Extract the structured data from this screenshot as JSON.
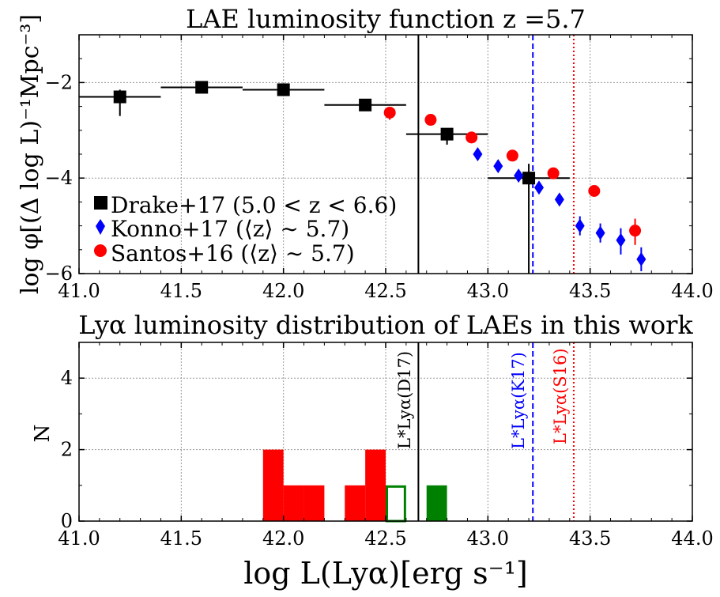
{
  "chart_data": [
    {
      "type": "scatter",
      "title": "LAE luminosity function z =5.7",
      "xlabel": "",
      "ylabel": "log φ[(Δ log L)⁻¹Mpc⁻³]",
      "xlim": [
        41.0,
        44.0
      ],
      "ylim": [
        -6,
        -1
      ],
      "xticks": [
        41.0,
        41.5,
        42.0,
        42.5,
        43.0,
        43.5,
        44.0
      ],
      "xtick_labels": [
        "41.0",
        "41.5",
        "42.0",
        "42.5",
        "43.0",
        "43.5",
        "44.0"
      ],
      "yticks": [
        -6,
        -4,
        -2
      ],
      "ytick_labels": [
        "−6",
        "−4",
        "−2"
      ],
      "grid": true,
      "legend_position": "bottom-left",
      "series": [
        {
          "name": "Drake+17 (5.0 < z < 6.6)",
          "marker": "square",
          "color": "#000000",
          "points": [
            {
              "x": 41.2,
              "y": -2.3,
              "xerr": 0.2,
              "ylo": -2.7,
              "yhi": -2.15
            },
            {
              "x": 41.6,
              "y": -2.1,
              "xerr": 0.2,
              "ylo": -2.1,
              "yhi": -2.1
            },
            {
              "x": 42.0,
              "y": -2.15,
              "xerr": 0.2,
              "ylo": -2.15,
              "yhi": -2.15
            },
            {
              "x": 42.4,
              "y": -2.47,
              "xerr": 0.2,
              "ylo": -2.47,
              "yhi": -2.47
            },
            {
              "x": 42.8,
              "y": -3.08,
              "xerr": 0.2,
              "ylo": -3.3,
              "yhi": -3.0
            },
            {
              "x": 43.2,
              "y": -4.0,
              "xerr": 0.2,
              "ylo": -6.0,
              "yhi": -3.7
            }
          ]
        },
        {
          "name": "Konno+17 (⟨z⟩ ∼ 5.7)",
          "marker": "diamond",
          "color": "#0000ff",
          "points": [
            {
              "x": 42.95,
              "y": -3.5,
              "ylo": -3.5,
              "yhi": -3.5
            },
            {
              "x": 43.05,
              "y": -3.75,
              "ylo": -3.75,
              "yhi": -3.75
            },
            {
              "x": 43.15,
              "y": -3.95,
              "ylo": -3.95,
              "yhi": -3.95
            },
            {
              "x": 43.25,
              "y": -4.2,
              "ylo": -4.2,
              "yhi": -4.2
            },
            {
              "x": 43.35,
              "y": -4.45,
              "ylo": -4.45,
              "yhi": -4.45
            },
            {
              "x": 43.45,
              "y": -5.0,
              "ylo": -5.2,
              "yhi": -4.8
            },
            {
              "x": 43.55,
              "y": -5.15,
              "ylo": -5.35,
              "yhi": -4.95
            },
            {
              "x": 43.65,
              "y": -5.3,
              "ylo": -5.6,
              "yhi": -5.05
            },
            {
              "x": 43.75,
              "y": -5.7,
              "ylo": -5.95,
              "yhi": -5.45
            }
          ]
        },
        {
          "name": "Santos+16 (⟨z⟩ ∼ 5.7)",
          "marker": "circle",
          "color": "#ff0000",
          "points": [
            {
              "x": 42.52,
              "y": -2.63,
              "ylo": -2.78,
              "yhi": -2.55
            },
            {
              "x": 42.72,
              "y": -2.78,
              "ylo": -2.78,
              "yhi": -2.78
            },
            {
              "x": 42.92,
              "y": -3.15,
              "ylo": -3.15,
              "yhi": -3.15
            },
            {
              "x": 43.12,
              "y": -3.53,
              "ylo": -3.53,
              "yhi": -3.53
            },
            {
              "x": 43.32,
              "y": -3.9,
              "ylo": -3.9,
              "yhi": -3.9
            },
            {
              "x": 43.52,
              "y": -4.27,
              "ylo": -4.27,
              "yhi": -4.27
            },
            {
              "x": 43.72,
              "y": -5.1,
              "ylo": -5.4,
              "yhi": -4.85
            }
          ]
        }
      ],
      "vlines": [
        {
          "x": 42.66,
          "style": "solid",
          "color": "#000000"
        },
        {
          "x": 43.22,
          "style": "dashed",
          "color": "#0000ff"
        },
        {
          "x": 43.42,
          "style": "dotted",
          "color": "#ff0000"
        }
      ]
    },
    {
      "type": "bar",
      "title": "Lyα luminosity distribution of LAEs in this work",
      "xlabel": "log L(Lyα)[erg s⁻¹]",
      "ylabel": "N",
      "xlim": [
        41.0,
        44.0
      ],
      "ylim": [
        0,
        5
      ],
      "xticks": [
        41.0,
        41.5,
        42.0,
        42.5,
        43.0,
        43.5,
        44.0
      ],
      "xtick_labels": [
        "41.0",
        "41.5",
        "42.0",
        "42.5",
        "43.0",
        "43.5",
        "44.0"
      ],
      "yticks": [
        0,
        2,
        4
      ],
      "ytick_labels": [
        "0",
        "2",
        "4"
      ],
      "grid": true,
      "bin_width": 0.1,
      "series": [
        {
          "name": "red",
          "color": "#ff0000",
          "fill": true,
          "bins": [
            {
              "x0": 41.9,
              "n": 2
            },
            {
              "x0": 42.0,
              "n": 1
            },
            {
              "x0": 42.1,
              "n": 1
            },
            {
              "x0": 42.3,
              "n": 1
            },
            {
              "x0": 42.4,
              "n": 2
            }
          ]
        },
        {
          "name": "green-outline",
          "color": "#008000",
          "fill": false,
          "bins": [
            {
              "x0": 42.5,
              "n": 1
            }
          ]
        },
        {
          "name": "green-filled",
          "color": "#008000",
          "fill": true,
          "bins": [
            {
              "x0": 42.7,
              "n": 1
            }
          ]
        }
      ],
      "vlines": [
        {
          "x": 42.66,
          "style": "solid",
          "color": "#000000",
          "label": "L*Lyα(D17)"
        },
        {
          "x": 43.22,
          "style": "dashed",
          "color": "#0000ff",
          "label": "L*Lyα(K17)"
        },
        {
          "x": 43.42,
          "style": "dotted",
          "color": "#ff0000",
          "label": "L*Lyα(S16)"
        }
      ]
    }
  ]
}
